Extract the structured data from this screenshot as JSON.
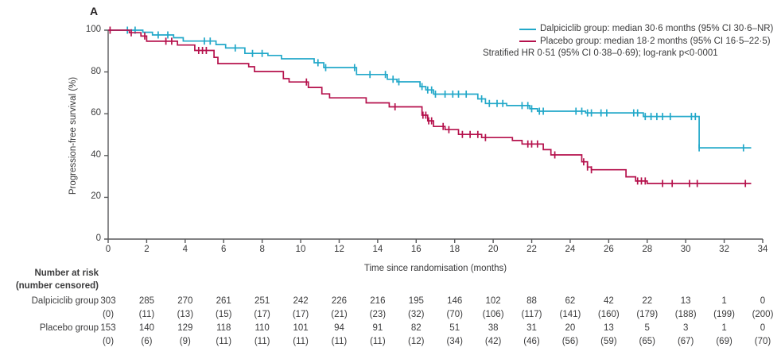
{
  "panel_label": "A",
  "colors": {
    "dalpiciclib": "#22a8c9",
    "placebo": "#b5114c",
    "axis": "#58595b",
    "text": "#3b3b3c"
  },
  "chart_data": {
    "type": "line",
    "subtype": "kaplan-meier-step",
    "title": "",
    "xlabel": "Time since randomisation (months)",
    "ylabel": "Progression-free survival (%)",
    "xlim": [
      0,
      34
    ],
    "ylim": [
      0,
      100
    ],
    "xticks": [
      0,
      2,
      4,
      6,
      8,
      10,
      12,
      14,
      16,
      18,
      20,
      22,
      24,
      26,
      28,
      30,
      32,
      34
    ],
    "yticks": [
      0,
      20,
      40,
      60,
      80,
      100
    ],
    "grid": false,
    "legend_position": "top-right",
    "series": [
      {
        "name": "Dalpiciclib group",
        "color": "#22a8c9",
        "steps": [
          [
            0,
            100
          ],
          [
            1.8,
            99
          ],
          [
            2.3,
            97.7
          ],
          [
            3.4,
            96.4
          ],
          [
            3.9,
            94.8
          ],
          [
            5.6,
            93.1
          ],
          [
            6.1,
            91.5
          ],
          [
            7.1,
            88.9
          ],
          [
            8.3,
            87.9
          ],
          [
            9.0,
            86.3
          ],
          [
            10.7,
            84.4
          ],
          [
            11.2,
            82.1
          ],
          [
            12.9,
            78.8
          ],
          [
            14.5,
            76.5
          ],
          [
            15.0,
            75.3
          ],
          [
            16.2,
            73.0
          ],
          [
            16.5,
            71.4
          ],
          [
            16.9,
            69.4
          ],
          [
            19.2,
            67.1
          ],
          [
            19.6,
            64.9
          ],
          [
            20.7,
            63.9
          ],
          [
            21.9,
            62.4
          ],
          [
            22.3,
            61.2
          ],
          [
            24.8,
            60.4
          ],
          [
            27.8,
            58.7
          ],
          [
            30.7,
            43.7
          ],
          [
            33.4,
            43.7
          ]
        ],
        "censor_months": [
          1.0,
          1.4,
          2.6,
          3.1,
          5.0,
          5.3,
          6.6,
          7.5,
          8.0,
          10.9,
          11.3,
          12.8,
          13.6,
          14.4,
          14.8,
          15.1,
          16.3,
          16.6,
          16.8,
          17.0,
          17.5,
          17.9,
          18.2,
          18.6,
          19.4,
          19.8,
          20.2,
          20.5,
          21.5,
          21.8,
          22.0,
          22.4,
          22.6,
          24.3,
          24.6,
          24.9,
          25.1,
          25.6,
          25.9,
          27.3,
          27.5,
          27.9,
          28.2,
          28.5,
          28.8,
          29.2,
          30.3,
          30.5,
          30.7,
          33.0
        ]
      },
      {
        "name": "Placebo group",
        "color": "#b5114c",
        "steps": [
          [
            0,
            100
          ],
          [
            1.1,
            98.8
          ],
          [
            1.7,
            97.2
          ],
          [
            2.0,
            94.7
          ],
          [
            3.6,
            92.9
          ],
          [
            4.5,
            90.3
          ],
          [
            5.5,
            87.0
          ],
          [
            5.7,
            84.0
          ],
          [
            7.3,
            82.5
          ],
          [
            7.6,
            80.2
          ],
          [
            9.1,
            76.8
          ],
          [
            9.4,
            75.2
          ],
          [
            10.4,
            72.6
          ],
          [
            11.1,
            69.5
          ],
          [
            11.5,
            67.6
          ],
          [
            13.4,
            65.2
          ],
          [
            14.6,
            63.3
          ],
          [
            16.3,
            59.3
          ],
          [
            16.6,
            56.6
          ],
          [
            16.9,
            53.9
          ],
          [
            17.5,
            52.4
          ],
          [
            18.2,
            50.1
          ],
          [
            19.4,
            48.6
          ],
          [
            21.0,
            47.2
          ],
          [
            21.5,
            45.5
          ],
          [
            22.6,
            42.8
          ],
          [
            23.0,
            40.3
          ],
          [
            24.6,
            37.0
          ],
          [
            24.9,
            34.5
          ],
          [
            25.1,
            33.2
          ],
          [
            26.9,
            29.8
          ],
          [
            27.4,
            27.8
          ],
          [
            28.0,
            26.6
          ],
          [
            33.4,
            26.6
          ]
        ],
        "censor_months": [
          0.1,
          1.2,
          1.9,
          3.0,
          3.3,
          4.7,
          4.9,
          5.1,
          10.3,
          14.9,
          16.35,
          16.5,
          16.65,
          16.8,
          17.4,
          17.7,
          18.4,
          18.8,
          19.2,
          19.6,
          21.8,
          22.0,
          22.3,
          23.2,
          24.7,
          24.9,
          25.1,
          27.5,
          27.7,
          27.9,
          28.8,
          29.3,
          30.2,
          30.6,
          33.1
        ]
      }
    ],
    "legend": [
      {
        "label": "Dalpiciclib group: median 30·6 months (95% CI 30·6–NR)",
        "color": "#22a8c9"
      },
      {
        "label": "Placebo group: median 18·2 months (95% CI 16·5–22·5)",
        "color": "#b5114c"
      }
    ],
    "annotation": "Stratified HR 0·51 (95% CI 0·38–0·69); log-rank p<0·0001"
  },
  "number_at_risk": {
    "header_line1": "Number at risk",
    "header_line2": "(number censored)",
    "timepoints": [
      0,
      2,
      4,
      6,
      8,
      10,
      12,
      14,
      16,
      18,
      20,
      22,
      24,
      26,
      28,
      30,
      32,
      34
    ],
    "rows": [
      {
        "label": "Dalpiciclib group",
        "at_risk": [
          303,
          285,
          270,
          261,
          251,
          242,
          226,
          216,
          195,
          146,
          102,
          88,
          62,
          42,
          22,
          13,
          1,
          0
        ],
        "censored": [
          0,
          11,
          13,
          15,
          17,
          17,
          21,
          23,
          32,
          70,
          106,
          117,
          141,
          160,
          179,
          188,
          199,
          200
        ]
      },
      {
        "label": "Placebo group",
        "at_risk": [
          153,
          140,
          129,
          118,
          110,
          101,
          94,
          91,
          82,
          51,
          38,
          31,
          20,
          13,
          5,
          3,
          1,
          0
        ],
        "censored": [
          0,
          6,
          9,
          11,
          11,
          11,
          11,
          11,
          12,
          34,
          42,
          46,
          56,
          59,
          65,
          67,
          69,
          70
        ]
      }
    ]
  }
}
